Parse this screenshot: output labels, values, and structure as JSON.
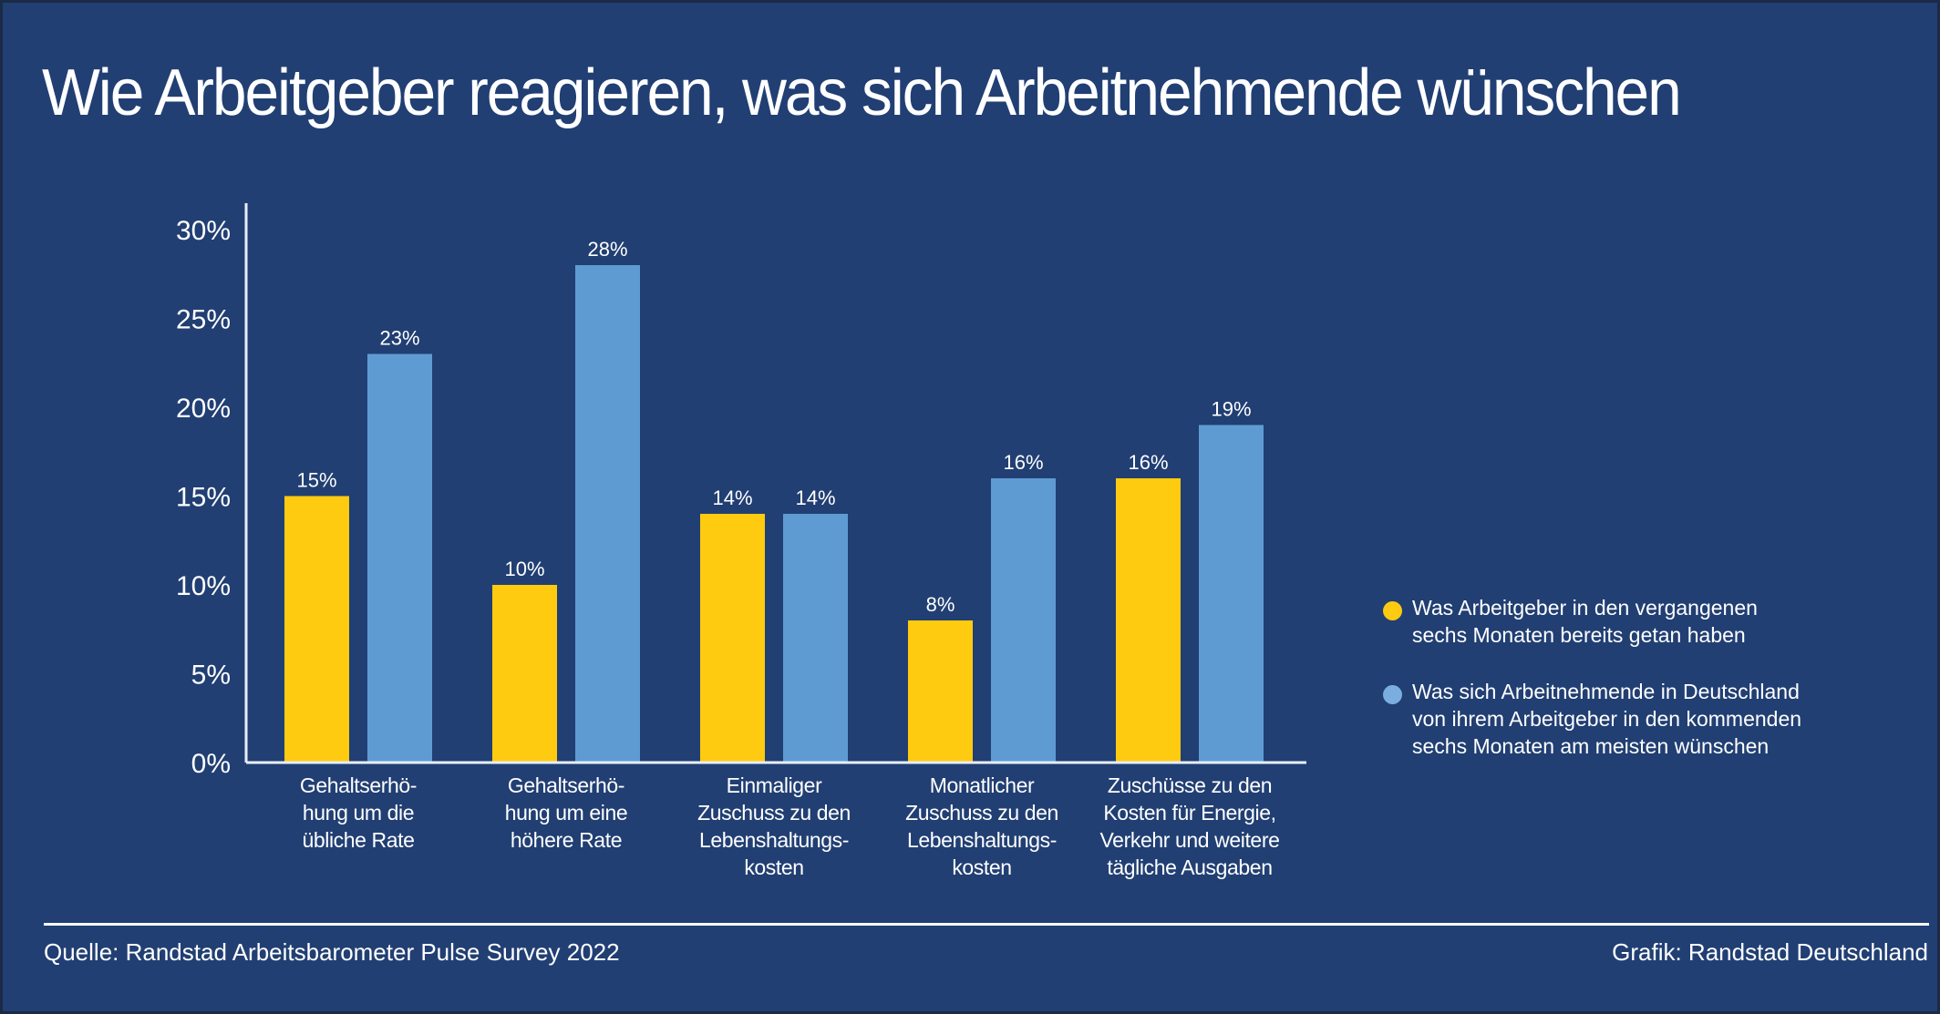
{
  "title": "Wie Arbeitgeber reagieren, was sich Arbeitnehmende wünschen",
  "colors": {
    "background": "#213f73",
    "series_employer": "#fecb10",
    "series_employee": "#5f9bd3",
    "legend_employee_dot": "#7aaee0",
    "text": "#ffffff"
  },
  "chart_data": {
    "type": "bar",
    "title": "Wie Arbeitgeber reagieren, was sich Arbeitnehmende wünschen",
    "xlabel": "",
    "ylabel": "",
    "ylim": [
      0,
      30
    ],
    "yticks": [
      0,
      5,
      10,
      15,
      20,
      25,
      30
    ],
    "ytick_labels": [
      "0%",
      "5%",
      "10%",
      "15%",
      "20%",
      "25%",
      "30%"
    ],
    "grid": false,
    "legend_position": "right",
    "categories": [
      "Gehaltserhöhung um die übliche Rate",
      "Gehaltserhöhung um eine höhere Rate",
      "Einmaliger Zuschuss zu den Lebenshaltungskosten",
      "Monatlicher Zuschuss zu den Lebenshaltungskosten",
      "Zuschüsse zu den Kosten für Energie, Verkehr und weitere tägliche Ausgaben"
    ],
    "category_label_lines": [
      [
        "Gehaltserhö-",
        "hung um die",
        "übliche Rate"
      ],
      [
        "Gehaltserhö-",
        "hung um eine",
        "höhere Rate"
      ],
      [
        "Einmaliger",
        "Zuschuss zu den",
        "Lebenshaltungs-",
        "kosten"
      ],
      [
        "Monatlicher",
        "Zuschuss zu den",
        "Lebenshaltungs-",
        "kosten"
      ],
      [
        "Zuschüsse zu den",
        "Kosten für Energie,",
        "Verkehr und weitere",
        "tägliche Ausgaben"
      ]
    ],
    "series": [
      {
        "name": "Was Arbeitgeber in den vergangenen sechs Monaten bereits getan haben",
        "color": "#fecb10",
        "values": [
          15,
          10,
          14,
          8,
          16
        ],
        "labels": [
          "15%",
          "10%",
          "14%",
          "8%",
          "16%"
        ]
      },
      {
        "name": "Was sich Arbeitnehmende in Deutschland von ihrem Arbeitgeber in den kommenden sechs Monaten am meisten wünschen",
        "color": "#5f9bd3",
        "values": [
          23,
          28,
          14,
          16,
          19
        ],
        "labels": [
          "23%",
          "28%",
          "14%",
          "16%",
          "19%"
        ]
      }
    ]
  },
  "legend": {
    "items": [
      {
        "lines": [
          "Was Arbeitgeber in den vergangenen",
          "sechs Monaten bereits getan haben"
        ]
      },
      {
        "lines": [
          "Was sich Arbeitnehmende in Deutschland",
          "von ihrem Arbeitgeber in den kommenden",
          "sechs Monaten am meisten wünschen"
        ]
      }
    ]
  },
  "footer": {
    "source": "Quelle: Randstad Arbeitsbarometer Pulse Survey 2022",
    "credit": "Grafik: Randstad Deutschland"
  }
}
